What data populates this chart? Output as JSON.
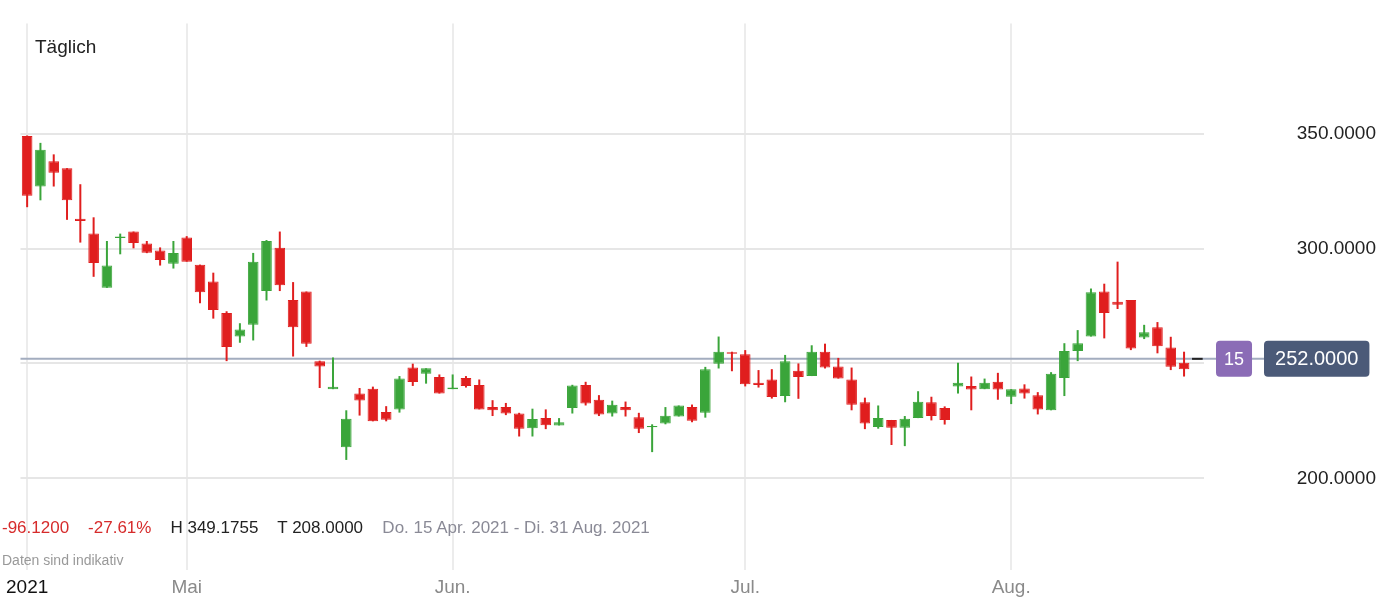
{
  "chart_data": {
    "type": "candlestick",
    "title": "Täglich",
    "categories": [
      "2021",
      null,
      null,
      null,
      null,
      null,
      null,
      null,
      null,
      null,
      null,
      null,
      "Mai",
      null,
      null,
      null,
      null,
      null,
      null,
      null,
      null,
      null,
      null,
      null,
      null,
      null,
      null,
      null,
      null,
      null,
      null,
      null,
      "Jun.",
      null,
      null,
      null,
      null,
      null,
      null,
      null,
      null,
      null,
      null,
      null,
      null,
      null,
      null,
      null,
      null,
      null,
      null,
      null,
      null,
      null,
      "Jul.",
      null,
      null,
      null,
      null,
      null,
      null,
      null,
      null,
      null,
      null,
      null,
      null,
      null,
      null,
      null,
      null,
      null,
      null,
      null,
      "Aug.",
      null,
      null,
      null,
      null,
      null,
      null,
      null,
      null,
      null,
      null,
      null,
      null,
      null,
      null
    ],
    "ohlc": [
      [
        349,
        349.2,
        318,
        323
      ],
      [
        327,
        346,
        321,
        343
      ],
      [
        338,
        341,
        327,
        333
      ],
      [
        335,
        335,
        312.5,
        321
      ],
      [
        313,
        328,
        302.6,
        312
      ],
      [
        306.6,
        313.6,
        287.7,
        293.7
      ],
      [
        282.9,
        303.3,
        282.9,
        292.6
      ],
      [
        304.6,
        306.5,
        297.5,
        305.2
      ],
      [
        307.4,
        307.4,
        300.1,
        302.4
      ],
      [
        302.2,
        303.3,
        298,
        298.2
      ],
      [
        299.2,
        300.5,
        292.6,
        295
      ],
      [
        293.4,
        303.3,
        291.3,
        298.1
      ],
      [
        304.8,
        305.4,
        294.3,
        294.3
      ],
      [
        292.9,
        293,
        276.2,
        281
      ],
      [
        285.7,
        289.5,
        269.5,
        273.3
      ],
      [
        271.9,
        272.7,
        251,
        257.2
      ],
      [
        261.7,
        267.5,
        259,
        264.8
      ],
      [
        266.8,
        298.1,
        260,
        294.3
      ],
      [
        281.5,
        303.7,
        277.4,
        303.3
      ],
      [
        300.3,
        307.4,
        281.5,
        284
      ],
      [
        277.6,
        285.4,
        253,
        265.8
      ],
      [
        281.3,
        281.3,
        257.2,
        258.6
      ],
      [
        251,
        251.2,
        239.3,
        248.7
      ],
      [
        238.8,
        252.6,
        238.8,
        239.9
      ],
      [
        213.5,
        229.6,
        208,
        225.9
      ],
      [
        236.9,
        239.3,
        227.3,
        233.9
      ],
      [
        239,
        239.9,
        224.8,
        224.8
      ],
      [
        228.9,
        231.4,
        224.8,
        225.5
      ],
      [
        230,
        244.5,
        228.6,
        243.4
      ],
      [
        248.2,
        249.9,
        240.2,
        241.9
      ],
      [
        245.5,
        247.9,
        241.2,
        247.9
      ],
      [
        244.1,
        245.2,
        236.9,
        236.9
      ],
      [
        238.8,
        245.2,
        238.8,
        239.5
      ],
      [
        243.7,
        244.5,
        239.5,
        240.2
      ],
      [
        240.6,
        243,
        230,
        230
      ],
      [
        231,
        234,
        227.1,
        229.6
      ],
      [
        231,
        232.8,
        227.5,
        228.2
      ],
      [
        228.2,
        228.5,
        218.2,
        221.6
      ],
      [
        221.8,
        230.3,
        218.2,
        225.8
      ],
      [
        226.2,
        230,
        221.4,
        223.1
      ],
      [
        223,
        226.2,
        223,
        224.4
      ],
      [
        230.6,
        240.7,
        228.2,
        240.4
      ],
      [
        240.6,
        242,
        231.7,
        232.6
      ],
      [
        234.2,
        236.2,
        227.1,
        227.8
      ],
      [
        228.2,
        233.8,
        226.9,
        232
      ],
      [
        231,
        233.4,
        226.9,
        229.6
      ],
      [
        226.6,
        228.5,
        219.7,
        221.6
      ],
      [
        222.2,
        223.5,
        211.4,
        222.8
      ],
      [
        223.8,
        231,
        223.5,
        227.2
      ],
      [
        226.9,
        231.7,
        226.9,
        231.7
      ],
      [
        231,
        232.1,
        224.4,
        225.1
      ],
      [
        228.5,
        248.5,
        226.4,
        247.5
      ],
      [
        249.9,
        261.7,
        247.8,
        255.1
      ],
      [
        254.9,
        255.1,
        246.6,
        254.2
      ],
      [
        254,
        255.8,
        240,
        240.9
      ],
      [
        241.6,
        247.1,
        239.5,
        240.6
      ],
      [
        243,
        247.5,
        234.7,
        235.4
      ],
      [
        235.8,
        253.7,
        233.1,
        251
      ],
      [
        246.8,
        250,
        234.6,
        244.1
      ],
      [
        244.5,
        257.9,
        244.5,
        255.1
      ],
      [
        255.1,
        258.6,
        247.8,
        248.2
      ],
      [
        248.7,
        252.4,
        243.4,
        243.4
      ],
      [
        243,
        248.2,
        229.6,
        232
      ],
      [
        233.1,
        235.1,
        221.4,
        223.8
      ],
      [
        222.3,
        231.7,
        221.6,
        226.2
      ],
      [
        225.4,
        225.4,
        214.5,
        222
      ],
      [
        222,
        227.1,
        214,
        225.9
      ],
      [
        226.2,
        237.9,
        226.2,
        233.3
      ],
      [
        233.1,
        235.5,
        225.2,
        227.1
      ],
      [
        230.6,
        231.3,
        223.4,
        225.4
      ],
      [
        240,
        250.3,
        236.9,
        241.6
      ],
      [
        240.2,
        244.3,
        229.6,
        238.6
      ],
      [
        238.8,
        243.4,
        238.8,
        241.6
      ],
      [
        242,
        245.9,
        234.2,
        238.6
      ],
      [
        235.5,
        238.8,
        232.3,
        238.8
      ],
      [
        239.1,
        240.9,
        234.7,
        236.9
      ],
      [
        236.1,
        237.5,
        227.8,
        229.9
      ],
      [
        229.6,
        246.2,
        229.6,
        245.5
      ],
      [
        243.7,
        258.8,
        235.8,
        255.4
      ],
      [
        255.4,
        264.5,
        251,
        258.8
      ],
      [
        261.7,
        282.6,
        261.7,
        281
      ],
      [
        281.3,
        284.7,
        260.9,
        272
      ],
      [
        276.9,
        294.3,
        273.7,
        275.5
      ],
      [
        277.6,
        277.6,
        255.8,
        256.5
      ],
      [
        261.3,
        266.8,
        260.6,
        263.6
      ],
      [
        265.7,
        268,
        254.4,
        257.5
      ],
      [
        256.9,
        261.6,
        247.1,
        248.5
      ],
      [
        250.3,
        255.1,
        244.3,
        247.5
      ],
      [
        252,
        252,
        252,
        252
      ]
    ],
    "colors": [
      "#e01e1e",
      "#3aa53a",
      "#e01e1e",
      "#e01e1e",
      "#e01e1e",
      "#e01e1e",
      "#3aa53a",
      "#3aa53a",
      "#e01e1e",
      "#e01e1e",
      "#e01e1e",
      "#3aa53a",
      "#e01e1e",
      "#e01e1e",
      "#e01e1e",
      "#e01e1e",
      "#3aa53a",
      "#3aa53a",
      "#3aa53a",
      "#e01e1e",
      "#e01e1e",
      "#e01e1e",
      "#e01e1e",
      "#3aa53a",
      "#3aa53a",
      "#e01e1e",
      "#e01e1e",
      "#e01e1e",
      "#3aa53a",
      "#e01e1e",
      "#3aa53a",
      "#e01e1e",
      "#3aa53a",
      "#e01e1e",
      "#e01e1e",
      "#e01e1e",
      "#e01e1e",
      "#e01e1e",
      "#3aa53a",
      "#e01e1e",
      "#3aa53a",
      "#3aa53a",
      "#e01e1e",
      "#e01e1e",
      "#3aa53a",
      "#e01e1e",
      "#e01e1e",
      "#3aa53a",
      "#3aa53a",
      "#3aa53a",
      "#e01e1e",
      "#3aa53a",
      "#3aa53a",
      "#e01e1e",
      "#e01e1e",
      "#e01e1e",
      "#e01e1e",
      "#3aa53a",
      "#e01e1e",
      "#3aa53a",
      "#e01e1e",
      "#e01e1e",
      "#e01e1e",
      "#e01e1e",
      "#3aa53a",
      "#e01e1e",
      "#3aa53a",
      "#3aa53a",
      "#e01e1e",
      "#e01e1e",
      "#3aa53a",
      "#e01e1e",
      "#3aa53a",
      "#e01e1e",
      "#3aa53a",
      "#e01e1e",
      "#e01e1e",
      "#3aa53a",
      "#3aa53a",
      "#3aa53a",
      "#3aa53a",
      "#e01e1e",
      "#e01e1e",
      "#e01e1e",
      "#3aa53a",
      "#e01e1e",
      "#e01e1e",
      "#e01e1e",
      "#222222"
    ],
    "ylim": [
      160,
      398
    ],
    "yticks": [
      {
        "value": 200,
        "label": "200.0000"
      },
      {
        "value": 250,
        "label": null
      },
      {
        "value": 300,
        "label": "300.0000"
      },
      {
        "value": 350,
        "label": "350.0000"
      }
    ],
    "ref_lines": [
      {
        "axis": "y",
        "value": 252,
        "label": "252.0000",
        "color": "#a3adbf"
      }
    ],
    "annotations": [
      "15",
      "-96.1200",
      "-27.61%",
      "H 349.1755",
      "T 208.0000",
      "Do. 15 Apr. 2021 - Di. 31 Aug. 2021",
      "Daten sind indikativ"
    ],
    "grid": true,
    "legend": false
  }
}
